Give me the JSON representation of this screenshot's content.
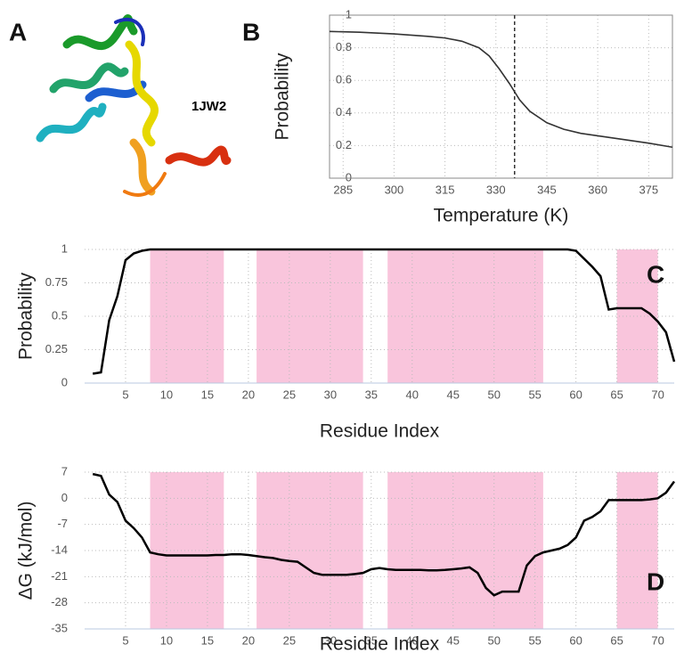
{
  "panel_a": {
    "panel_label": "A",
    "structure_label": "1JW2"
  },
  "chart_data": [
    {
      "type": "line",
      "panel_label": "B",
      "xlabel": "Temperature (K)",
      "ylabel": "Probability",
      "x": [
        281,
        290,
        300,
        310,
        315,
        320,
        325,
        328,
        331,
        334,
        337,
        340,
        345,
        350,
        355,
        360,
        365,
        370,
        375,
        382
      ],
      "series": [
        {
          "color": "#333333",
          "values": [
            0.9,
            0.895,
            0.885,
            0.87,
            0.86,
            0.84,
            0.8,
            0.75,
            0.67,
            0.58,
            0.48,
            0.41,
            0.34,
            0.3,
            0.275,
            0.26,
            0.245,
            0.23,
            0.215,
            0.19
          ]
        }
      ],
      "vline": 335.5,
      "xlim": [
        281,
        382
      ],
      "ylim": [
        0,
        1
      ],
      "xticks": [
        285,
        300,
        315,
        330,
        345,
        360,
        375
      ],
      "yticks": [
        0,
        0.2,
        0.4,
        0.6,
        0.8,
        1
      ],
      "grid": true
    },
    {
      "type": "line",
      "panel_label": "C",
      "xlabel": "Residue Index",
      "ylabel": "Probability",
      "x": [
        1,
        2,
        3,
        4,
        5,
        6,
        7,
        8,
        9,
        10,
        11,
        12,
        13,
        14,
        15,
        16,
        17,
        18,
        19,
        20,
        21,
        22,
        23,
        24,
        25,
        26,
        27,
        28,
        29,
        30,
        31,
        32,
        33,
        34,
        35,
        36,
        37,
        38,
        39,
        40,
        41,
        42,
        43,
        44,
        45,
        46,
        47,
        48,
        49,
        50,
        51,
        52,
        53,
        54,
        55,
        56,
        57,
        58,
        59,
        60,
        61,
        62,
        63,
        64,
        65,
        66,
        67,
        68,
        69,
        70,
        71,
        72
      ],
      "series": [
        {
          "color": "#000000",
          "values": [
            0.07,
            0.08,
            0.47,
            0.65,
            0.92,
            0.97,
            0.99,
            1,
            1,
            1,
            1,
            1,
            1,
            1,
            1,
            1,
            1,
            1,
            1,
            1,
            1,
            1,
            1,
            1,
            1,
            1,
            1,
            1,
            1,
            1,
            1,
            1,
            1,
            1,
            1,
            1,
            1,
            1,
            1,
            1,
            1,
            1,
            1,
            1,
            1,
            1,
            1,
            1,
            1,
            1,
            1,
            1,
            1,
            1,
            1,
            1,
            1,
            1,
            1,
            0.99,
            0.93,
            0.87,
            0.8,
            0.55,
            0.56,
            0.56,
            0.56,
            0.56,
            0.52,
            0.46,
            0.38,
            0.16
          ]
        }
      ],
      "regions": [
        [
          8,
          17
        ],
        [
          21,
          34
        ],
        [
          37,
          56
        ],
        [
          65,
          70
        ]
      ],
      "region_color": "#f9c5dc",
      "xlim": [
        0,
        72
      ],
      "ylim": [
        0,
        1
      ],
      "xticks": [
        5,
        10,
        15,
        20,
        25,
        30,
        35,
        40,
        45,
        50,
        55,
        60,
        65,
        70
      ],
      "yticks": [
        0,
        0.25,
        0.5,
        0.75,
        1
      ],
      "grid": true
    },
    {
      "type": "line",
      "panel_label": "D",
      "xlabel": "Residue Index",
      "ylabel": "ΔG (kJ/mol)",
      "x": [
        1,
        2,
        3,
        4,
        5,
        6,
        7,
        8,
        9,
        10,
        11,
        12,
        13,
        14,
        15,
        16,
        17,
        18,
        19,
        20,
        21,
        22,
        23,
        24,
        25,
        26,
        27,
        28,
        29,
        30,
        31,
        32,
        33,
        34,
        35,
        36,
        37,
        38,
        39,
        40,
        41,
        42,
        43,
        44,
        45,
        46,
        47,
        48,
        49,
        50,
        51,
        52,
        53,
        54,
        55,
        56,
        57,
        58,
        59,
        60,
        61,
        62,
        63,
        64,
        65,
        66,
        67,
        68,
        69,
        70,
        71,
        72
      ],
      "series": [
        {
          "color": "#000000",
          "values": [
            6.5,
            6,
            1,
            -1,
            -6,
            -8,
            -10.5,
            -14.5,
            -15,
            -15.3,
            -15.3,
            -15.3,
            -15.3,
            -15.3,
            -15.3,
            -15.2,
            -15.2,
            -15,
            -15,
            -15.2,
            -15.5,
            -15.8,
            -16,
            -16.5,
            -16.8,
            -17,
            -18.5,
            -20,
            -20.5,
            -20.5,
            -20.5,
            -20.5,
            -20.3,
            -20,
            -19,
            -18.7,
            -19,
            -19.2,
            -19.2,
            -19.2,
            -19.2,
            -19.3,
            -19.3,
            -19.2,
            -19,
            -18.8,
            -18.5,
            -20,
            -24,
            -26,
            -25,
            -25,
            -25,
            -18,
            -15.5,
            -14.5,
            -14,
            -13.5,
            -12.5,
            -10.5,
            -6,
            -5,
            -3.5,
            -0.5,
            -0.5,
            -0.5,
            -0.5,
            -0.5,
            -0.3,
            0,
            1.5,
            4.5
          ]
        }
      ],
      "regions": [
        [
          8,
          17
        ],
        [
          21,
          34
        ],
        [
          37,
          56
        ],
        [
          65,
          70
        ]
      ],
      "region_color": "#f9c5dc",
      "xlim": [
        0,
        72
      ],
      "ylim": [
        -35,
        7
      ],
      "xticks": [
        5,
        10,
        15,
        20,
        25,
        30,
        35,
        40,
        45,
        50,
        55,
        60,
        65,
        70
      ],
      "yticks": [
        -35,
        -28,
        -21,
        -14,
        -7,
        0,
        7
      ],
      "grid": true
    }
  ]
}
